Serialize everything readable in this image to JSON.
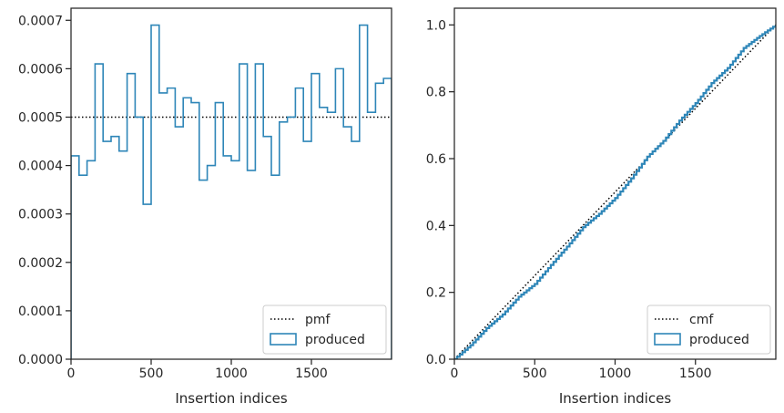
{
  "chart_data": [
    {
      "type": "step",
      "xlabel": "Insertion indices",
      "ylabel": "",
      "xlim": [
        0,
        2000
      ],
      "ylim": [
        0,
        0.000725
      ],
      "xticks": [
        0,
        500,
        1000,
        1500
      ],
      "xtick_labels": [
        "0",
        "500",
        "1000",
        "1500"
      ],
      "yticks": [
        0,
        0.0001,
        0.0002,
        0.0003,
        0.0004,
        0.0005,
        0.0006,
        0.0007
      ],
      "ytick_labels": [
        "0.0000",
        "0.0001",
        "0.0002",
        "0.0003",
        "0.0004",
        "0.0005",
        "0.0006",
        "0.0007"
      ],
      "legend_position": "lower right",
      "series": [
        {
          "name": "pmf",
          "style": "dotted",
          "color": "#000000",
          "x": [
            0,
            2000
          ],
          "values": [
            0.0005,
            0.0005
          ]
        },
        {
          "name": "produced",
          "style": "histogram-step",
          "color": "#2e86b8",
          "bin_width": 50,
          "bin_edges_start": 0,
          "values": [
            0.00042,
            0.00038,
            0.00041,
            0.00061,
            0.00045,
            0.00046,
            0.00043,
            0.00059,
            0.0005,
            0.00032,
            0.00069,
            0.00055,
            0.00056,
            0.00048,
            0.00054,
            0.00053,
            0.00037,
            0.0004,
            0.00053,
            0.00042,
            0.00041,
            0.00061,
            0.00039,
            0.00061,
            0.00046,
            0.00038,
            0.00049,
            0.0005,
            0.00056,
            0.00045,
            0.00059,
            0.00052,
            0.00051,
            0.0006,
            0.00048,
            0.00045,
            0.00069,
            0.00051,
            0.00057,
            0.00058
          ]
        }
      ]
    },
    {
      "type": "line",
      "xlabel": "Insertion indices",
      "ylabel": "",
      "xlim": [
        0,
        2000
      ],
      "ylim": [
        0,
        1.05
      ],
      "xticks": [
        0,
        500,
        1000,
        1500
      ],
      "xtick_labels": [
        "0",
        "500",
        "1000",
        "1500"
      ],
      "yticks": [
        0,
        0.2,
        0.4,
        0.6,
        0.8,
        1.0
      ],
      "ytick_labels": [
        "0.0",
        "0.2",
        "0.4",
        "0.6",
        "0.8",
        "1.0"
      ],
      "legend_position": "lower right",
      "series": [
        {
          "name": "cmf",
          "style": "dotted",
          "color": "#000000",
          "x": [
            0,
            2000
          ],
          "values": [
            0,
            1.0
          ]
        },
        {
          "name": "produced",
          "style": "cumulative-step",
          "color": "#2e86b8",
          "x": [
            0,
            100,
            200,
            300,
            400,
            500,
            600,
            700,
            800,
            900,
            1000,
            1100,
            1200,
            1300,
            1400,
            1500,
            1600,
            1700,
            1800,
            1900,
            2000
          ],
          "values": [
            0,
            0.042,
            0.093,
            0.134,
            0.187,
            0.225,
            0.282,
            0.337,
            0.395,
            0.435,
            0.482,
            0.541,
            0.606,
            0.653,
            0.714,
            0.766,
            0.826,
            0.871,
            0.931,
            0.967,
            1.0
          ]
        }
      ]
    }
  ]
}
